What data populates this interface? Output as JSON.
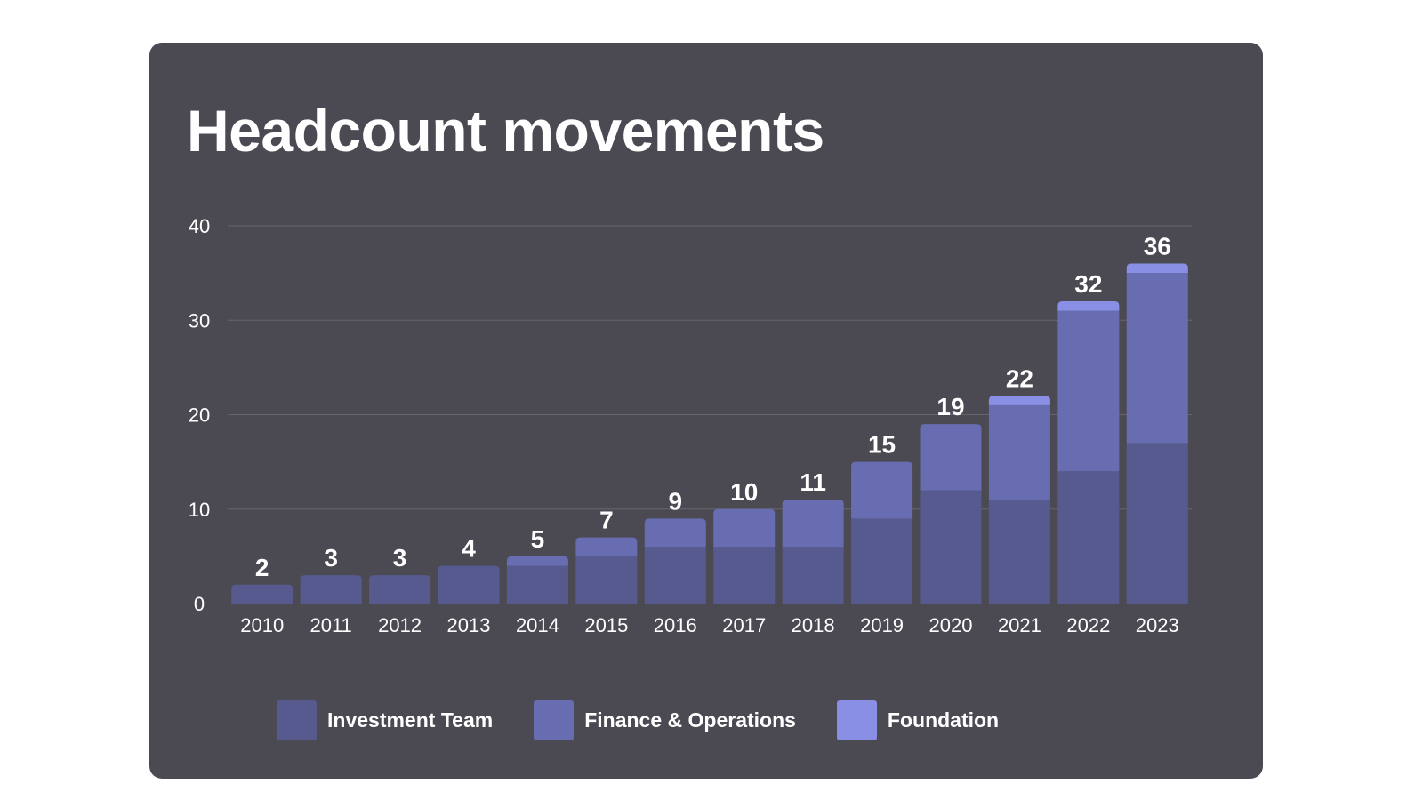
{
  "chart_data": {
    "type": "bar",
    "stacked": true,
    "title": "Headcount movements",
    "xlabel": "",
    "ylabel": "",
    "ylim": [
      0,
      40
    ],
    "yticks": [
      0,
      10,
      20,
      30,
      40
    ],
    "grid": true,
    "legend_position": "bottom",
    "categories": [
      "2010",
      "2011",
      "2012",
      "2013",
      "2014",
      "2015",
      "2016",
      "2017",
      "2018",
      "2019",
      "2020",
      "2021",
      "2022",
      "2023"
    ],
    "series": [
      {
        "name": "Investment Team",
        "color": "#565a8f",
        "values": [
          2,
          3,
          3,
          4,
          4,
          5,
          6,
          6,
          6,
          9,
          12,
          11,
          14,
          17
        ]
      },
      {
        "name": "Finance & Operations",
        "color": "#676db0",
        "values": [
          0,
          0,
          0,
          0,
          1,
          2,
          3,
          4,
          5,
          6,
          7,
          10,
          17,
          18
        ]
      },
      {
        "name": "Foundation",
        "color": "#8a8fe6",
        "values": [
          0,
          0,
          0,
          0,
          0,
          0,
          0,
          0,
          0,
          0,
          0,
          1,
          1,
          1
        ]
      }
    ],
    "totals": [
      2,
      3,
      3,
      4,
      5,
      7,
      9,
      10,
      11,
      15,
      19,
      22,
      32,
      36
    ]
  },
  "colors": {
    "background": "#4b4a53",
    "gridline": "#66656e",
    "text": "#ffffff"
  }
}
